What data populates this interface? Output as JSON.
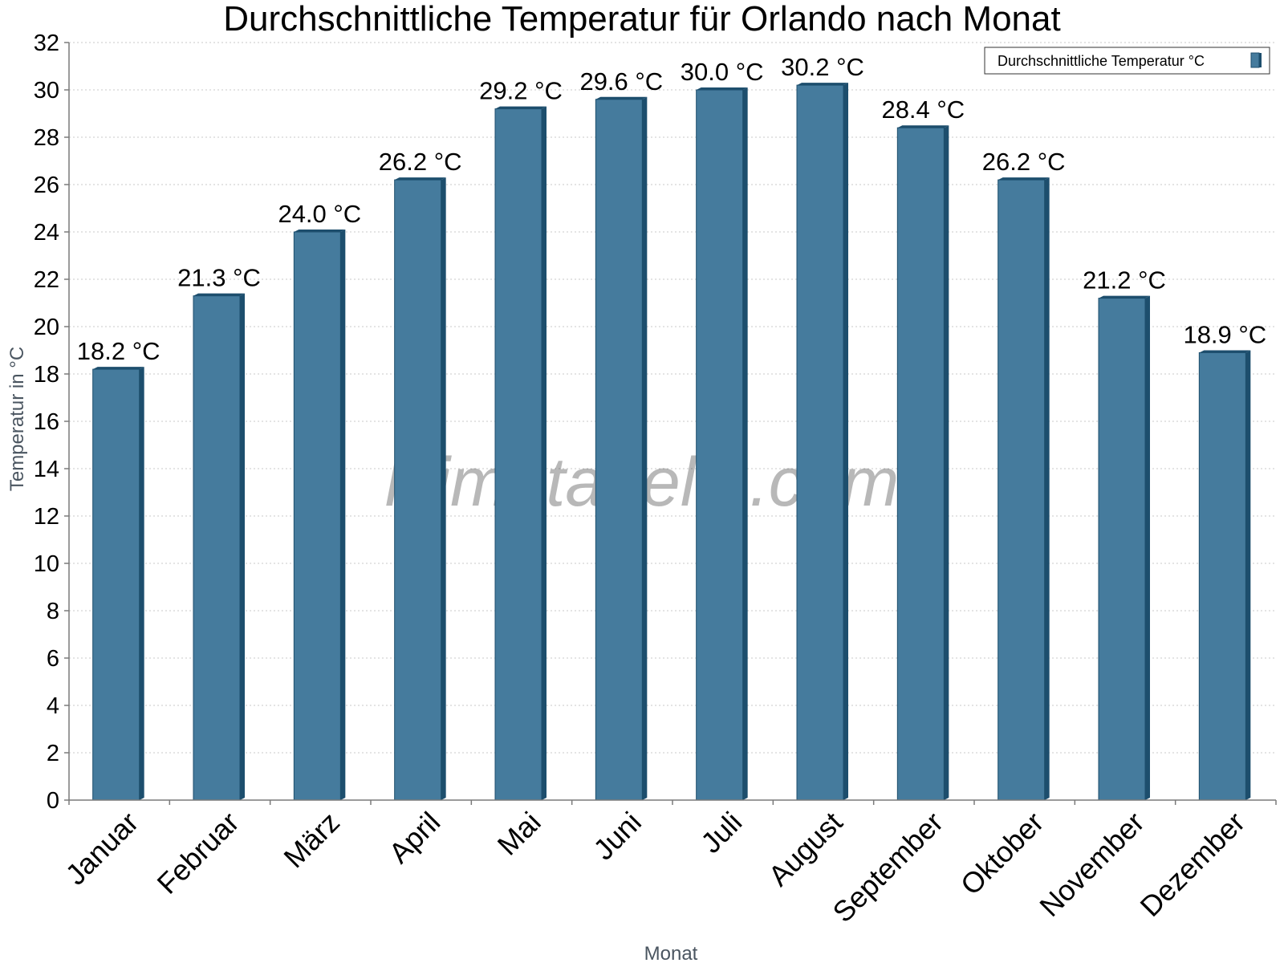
{
  "colors": {
    "bar_front": "#457b9d",
    "bar_side": "#1d4e6d",
    "bar_top": "#1d4e6d"
  },
  "watermark": "klimatabelle.com",
  "chart_data": {
    "type": "bar",
    "title": "Durchschnittliche Temperatur für Orlando nach Monat",
    "xlabel": "Monat",
    "ylabel": "Temperatur in °C",
    "ylim": [
      0,
      32
    ],
    "ytick_step": 2,
    "grid": true,
    "legend_position": "top-right",
    "categories": [
      "Januar",
      "Februar",
      "März",
      "April",
      "Mai",
      "Juni",
      "Juli",
      "August",
      "September",
      "Oktober",
      "November",
      "Dezember"
    ],
    "series": [
      {
        "name": "Durchschnittliche Temperatur °C",
        "values": [
          18.2,
          21.3,
          24.0,
          26.2,
          29.2,
          29.6,
          30.0,
          30.2,
          28.4,
          26.2,
          21.2,
          18.9
        ],
        "labels": [
          "18.2 °C",
          "21.3 °C",
          "24.0 °C",
          "26.2 °C",
          "29.2 °C",
          "29.6 °C",
          "30.0 °C",
          "30.2 °C",
          "28.4 °C",
          "26.2 °C",
          "21.2 °C",
          "18.9 °C"
        ]
      }
    ]
  }
}
